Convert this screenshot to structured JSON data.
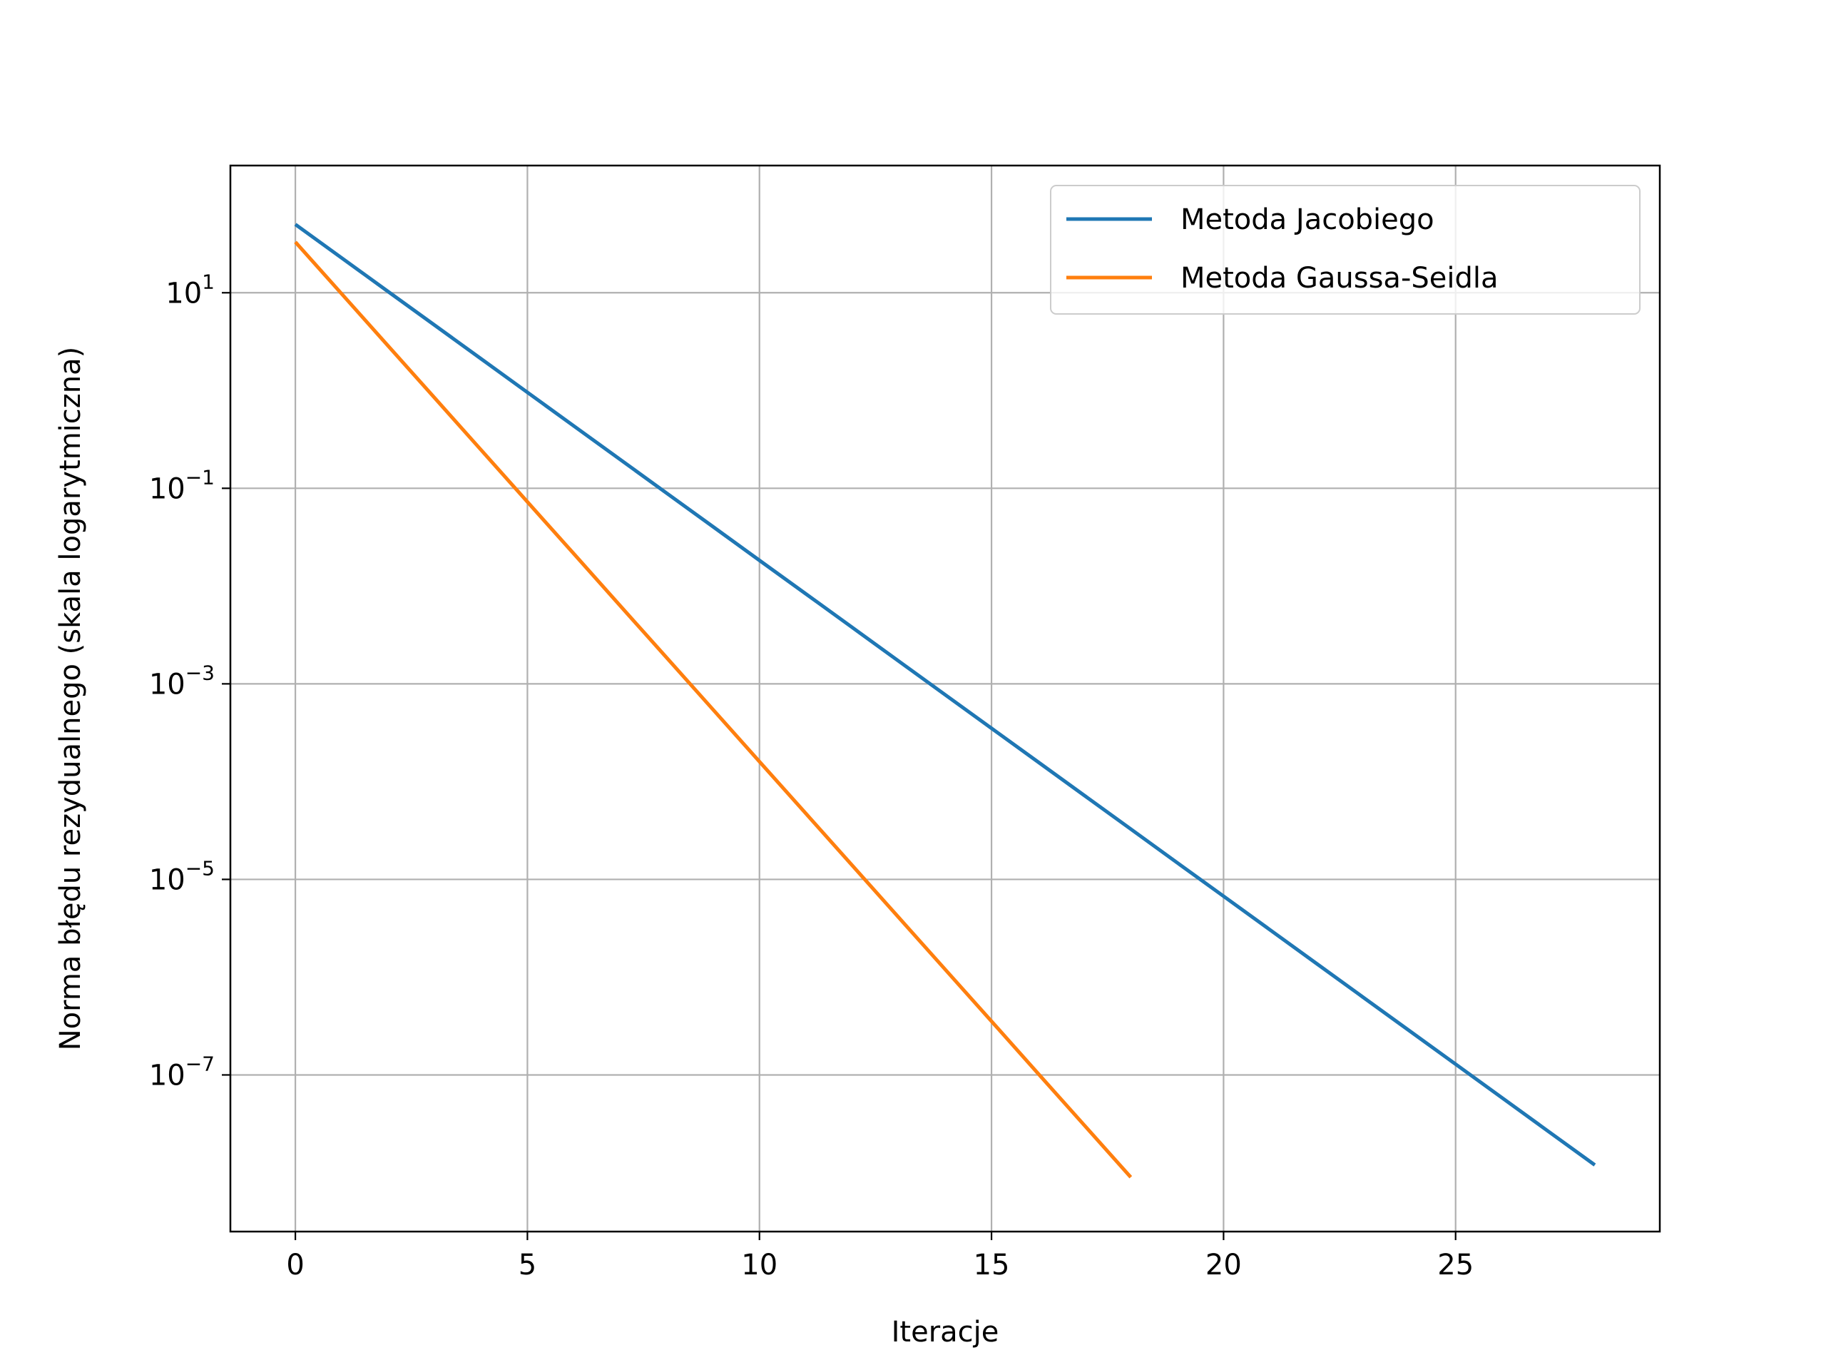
{
  "chart_data": {
    "type": "line",
    "title": "",
    "xlabel": "Iteracje",
    "ylabel": "Norma błędu rezydualnego (skala logarytmiczna)",
    "xscale": "linear",
    "yscale": "log",
    "xlim": [
      -1.4,
      29.4
    ],
    "ylim": [
      2.5e-09,
      200
    ],
    "grid": true,
    "legend_position": "top-right",
    "xticks": [
      0,
      5,
      10,
      15,
      20,
      25
    ],
    "xtick_labels": [
      "0",
      "5",
      "10",
      "15",
      "20",
      "25"
    ],
    "yticks": [
      {
        "value": 10,
        "base": "10",
        "exp": "1"
      },
      {
        "value": 0.1,
        "base": "10",
        "exp": "−1"
      },
      {
        "value": 0.001,
        "base": "10",
        "exp": "−3"
      },
      {
        "value": 1e-05,
        "base": "10",
        "exp": "−5"
      },
      {
        "value": 1e-07,
        "base": "10",
        "exp": "−7"
      }
    ],
    "series": [
      {
        "name": "Metoda Jacobiego",
        "color": "#1f77b4",
        "x_start": 0,
        "x_end": 28,
        "y_start": 50,
        "y_end": 1.2e-08
      },
      {
        "name": "Metoda Gaussa-Seidla",
        "color": "#ff7f0e",
        "x_start": 0,
        "x_end": 18,
        "y_start": 33,
        "y_end": 9e-09
      }
    ]
  }
}
